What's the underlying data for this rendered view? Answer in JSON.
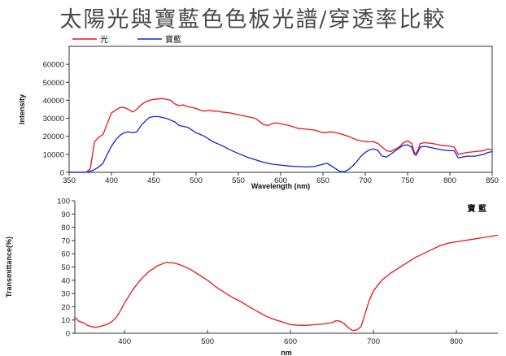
{
  "title": "太陽光與寶藍色色板光譜/穿透率比較",
  "chart_data": [
    {
      "type": "line",
      "xlabel": "Wavelength (nm)",
      "ylabel": "Intensity",
      "xlim": [
        350,
        850
      ],
      "ylim": [
        0,
        70000
      ],
      "xticks": [
        350,
        400,
        450,
        500,
        550,
        600,
        650,
        700,
        750,
        800,
        850
      ],
      "yticks": [
        0,
        10000,
        20000,
        30000,
        40000,
        50000,
        60000
      ],
      "legend_position": "top-left",
      "series": [
        {
          "name": "光",
          "color": "#e8141c",
          "x": [
            350,
            370,
            375,
            380,
            385,
            390,
            395,
            400,
            405,
            410,
            415,
            420,
            425,
            430,
            435,
            440,
            445,
            450,
            455,
            460,
            465,
            470,
            475,
            480,
            485,
            490,
            495,
            500,
            505,
            510,
            515,
            520,
            525,
            530,
            540,
            550,
            560,
            570,
            580,
            585,
            590,
            595,
            600,
            610,
            620,
            630,
            640,
            650,
            660,
            670,
            680,
            690,
            700,
            710,
            715,
            720,
            725,
            730,
            740,
            745,
            750,
            755,
            758,
            760,
            763,
            765,
            770,
            780,
            790,
            800,
            805,
            810,
            815,
            820,
            830,
            840,
            845,
            850
          ],
          "values": [
            0,
            0,
            2000,
            17000,
            19500,
            21000,
            27000,
            33000,
            34500,
            36000,
            36000,
            35000,
            33500,
            35000,
            37500,
            39000,
            40000,
            40500,
            40800,
            41000,
            40500,
            40000,
            38000,
            37000,
            37500,
            36500,
            36000,
            35500,
            34500,
            34000,
            34500,
            34000,
            34000,
            33500,
            33000,
            32000,
            31000,
            30000,
            26500,
            26000,
            27000,
            27500,
            27000,
            26000,
            24500,
            24000,
            23500,
            22000,
            22500,
            21500,
            20000,
            18000,
            17000,
            17000,
            16000,
            14000,
            12000,
            11500,
            14000,
            16500,
            17500,
            16000,
            11000,
            10500,
            13000,
            16000,
            16500,
            16000,
            15000,
            14500,
            14000,
            10000,
            10500,
            11000,
            11500,
            12000,
            13000,
            12500
          ]
        },
        {
          "name": "寶藍",
          "color": "#1423d8",
          "x": [
            350,
            370,
            378,
            385,
            390,
            395,
            400,
            405,
            410,
            415,
            420,
            425,
            430,
            435,
            440,
            445,
            450,
            455,
            460,
            465,
            470,
            475,
            480,
            485,
            490,
            495,
            500,
            505,
            510,
            520,
            530,
            540,
            550,
            560,
            570,
            580,
            590,
            600,
            610,
            620,
            630,
            640,
            650,
            655,
            660,
            665,
            670,
            675,
            680,
            685,
            690,
            695,
            700,
            705,
            710,
            715,
            720,
            725,
            730,
            740,
            745,
            750,
            755,
            758,
            760,
            763,
            765,
            770,
            780,
            790,
            800,
            805,
            810,
            815,
            820,
            830,
            840,
            845,
            850
          ],
          "values": [
            0,
            0,
            1000,
            3000,
            5000,
            10000,
            14500,
            18000,
            20500,
            22000,
            22500,
            22000,
            22500,
            26000,
            28500,
            30500,
            31000,
            31000,
            30500,
            30000,
            29000,
            28000,
            26000,
            25500,
            25000,
            23500,
            22000,
            21000,
            20000,
            17000,
            15000,
            12500,
            10500,
            8500,
            7000,
            5500,
            4500,
            4000,
            3500,
            3200,
            3000,
            3200,
            4500,
            5000,
            3500,
            2000,
            500,
            300,
            1500,
            3500,
            6000,
            9000,
            11000,
            12500,
            13000,
            12000,
            9000,
            8500,
            10000,
            13500,
            15000,
            15200,
            14000,
            10000,
            9500,
            12000,
            14000,
            14500,
            13500,
            12500,
            12000,
            12000,
            8000,
            8500,
            9000,
            9000,
            10000,
            11000,
            11500
          ]
        }
      ]
    },
    {
      "type": "line",
      "xlabel": "nm",
      "ylabel": "Transmittance(%)",
      "xlim": [
        340,
        850
      ],
      "ylim": [
        0,
        100
      ],
      "xticks": [
        400,
        500,
        600,
        700,
        800
      ],
      "yticks": [
        0,
        10,
        20,
        30,
        40,
        50,
        60,
        70,
        80,
        90,
        100
      ],
      "legend_position": "top-right",
      "series": [
        {
          "name": "寶 藍",
          "color": "#e8141c",
          "x": [
            340,
            345,
            350,
            355,
            360,
            365,
            370,
            375,
            380,
            385,
            390,
            395,
            400,
            410,
            420,
            430,
            440,
            450,
            460,
            470,
            480,
            490,
            500,
            510,
            520,
            530,
            540,
            550,
            560,
            570,
            580,
            590,
            600,
            610,
            620,
            630,
            640,
            650,
            655,
            660,
            665,
            670,
            675,
            680,
            685,
            690,
            695,
            700,
            710,
            720,
            730,
            740,
            750,
            760,
            770,
            780,
            790,
            800,
            810,
            820,
            830,
            840,
            850
          ],
          "values": [
            12,
            9,
            8,
            6,
            5,
            4.5,
            5,
            6,
            7,
            9,
            12,
            17,
            23,
            33,
            41,
            47,
            51,
            53.5,
            53,
            51,
            48,
            44,
            40,
            35,
            31,
            27,
            24,
            20,
            16.5,
            13,
            10.5,
            8.5,
            6.5,
            6,
            6,
            6.5,
            7,
            8,
            9.5,
            9,
            7,
            4,
            2,
            2.5,
            5,
            15,
            25,
            32,
            40,
            45,
            49,
            53,
            57,
            60,
            63,
            66,
            68,
            69,
            70,
            71,
            72,
            73,
            74
          ]
        }
      ]
    }
  ]
}
